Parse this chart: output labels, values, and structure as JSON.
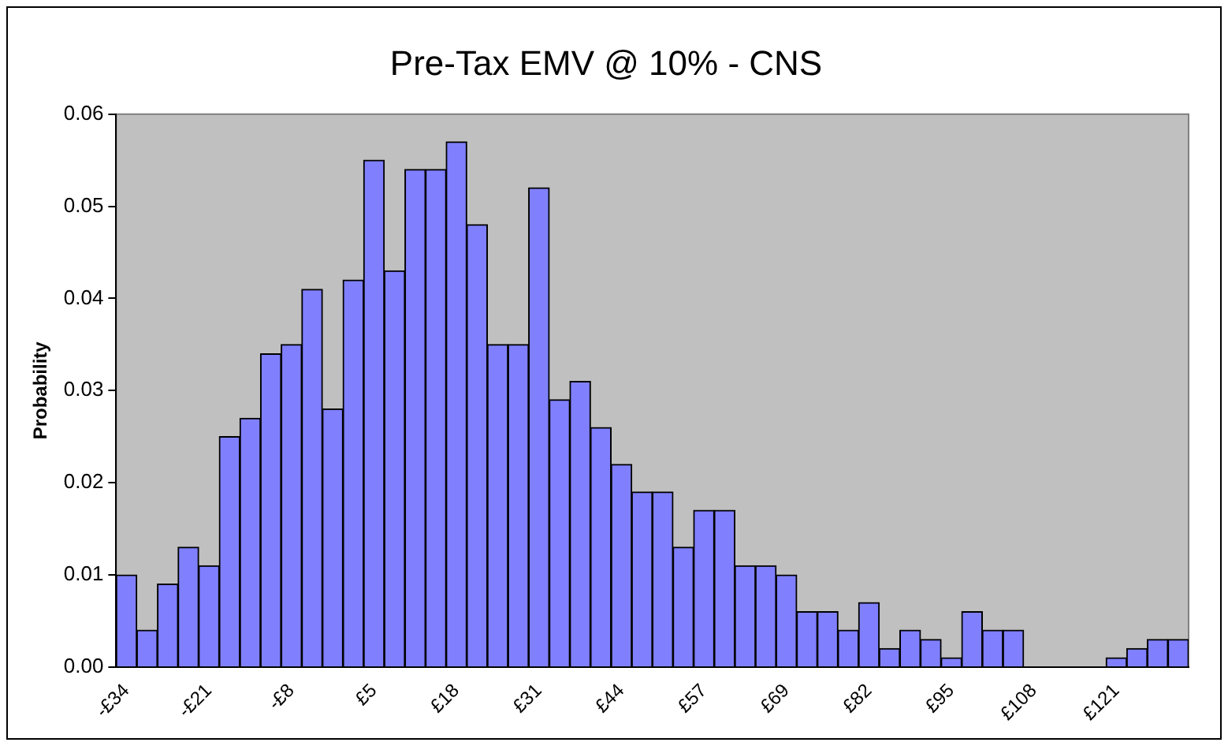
{
  "chart_data": {
    "type": "bar",
    "title": "Pre-Tax EMV @ 10% - CNS",
    "ylabel": "Probability",
    "categories": [
      "-£34",
      null,
      null,
      null,
      "-£21",
      null,
      null,
      null,
      "-£8",
      null,
      null,
      null,
      "£5",
      null,
      null,
      null,
      "£18",
      null,
      null,
      null,
      "£31",
      null,
      null,
      null,
      "£44",
      null,
      null,
      null,
      "£57",
      null,
      null,
      null,
      "£69",
      null,
      null,
      null,
      "£82",
      null,
      null,
      null,
      "£95",
      null,
      null,
      null,
      "£108",
      null,
      null,
      null,
      "£121",
      null,
      null,
      null
    ],
    "values": [
      0.01,
      0.004,
      0.009,
      0.013,
      0.011,
      0.025,
      0.027,
      0.034,
      0.035,
      0.041,
      0.028,
      0.042,
      0.055,
      0.043,
      0.054,
      0.054,
      0.057,
      0.048,
      0.035,
      0.035,
      0.052,
      0.029,
      0.031,
      0.026,
      0.022,
      0.019,
      0.019,
      0.013,
      0.017,
      0.017,
      0.011,
      0.011,
      0.01,
      0.006,
      0.006,
      0.004,
      0.007,
      0.002,
      0.004,
      0.003,
      0.001,
      0.006,
      0.004,
      0.004,
      0,
      0,
      0,
      0,
      0.001,
      0.002,
      0.003,
      0.003
    ],
    "color": "#8080ff",
    "ylim": [
      0,
      0.06
    ],
    "yticks": [
      {
        "value": 0,
        "label": "0.00"
      },
      {
        "value": 0.01,
        "label": "0.01"
      },
      {
        "value": 0.02,
        "label": "0.02"
      },
      {
        "value": 0.03,
        "label": "0.03"
      },
      {
        "value": 0.04,
        "label": "0.04"
      },
      {
        "value": 0.05,
        "label": "0.05"
      },
      {
        "value": 0.06,
        "label": "0.06"
      }
    ],
    "grid": false,
    "legend": false
  }
}
